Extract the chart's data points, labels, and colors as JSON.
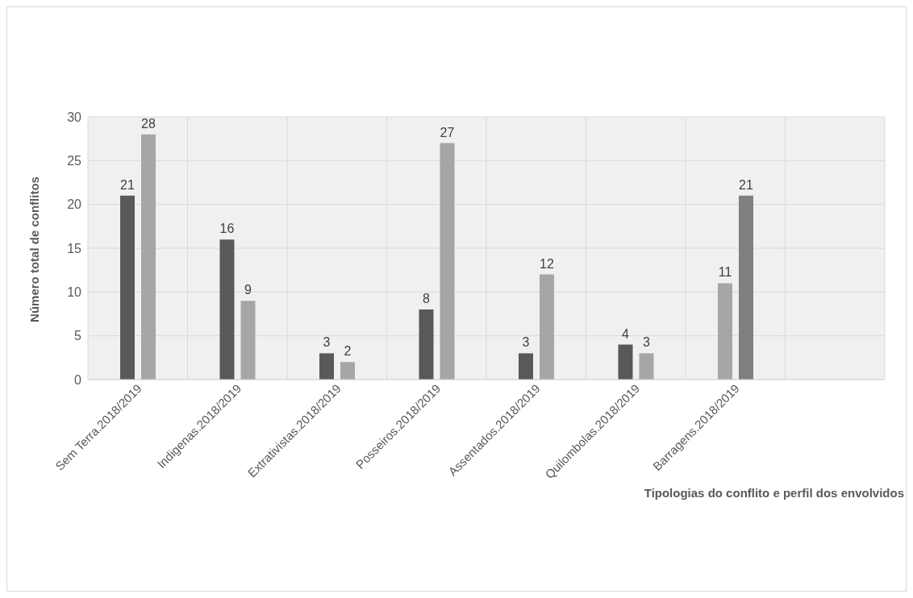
{
  "chart_data": {
    "type": "bar",
    "ylabel": "Número total de conflitos",
    "xlabel": "Tipologias do conflito e perfil dos envolvidos",
    "categories": [
      "Sem Terra.2018/2019",
      "Indigenas.2018/2019",
      "Extrativistas.2018/2019",
      "Posseiros.2018/2019",
      "Assentados.2018/2019",
      "Quilombolas.2018/2019",
      "Barragens.2018/2019",
      null
    ],
    "series": [
      {
        "colors": [
          "#595959",
          "#595959",
          "#595959",
          "#595959",
          "#595959",
          "#595959",
          "#a6a6a6",
          "#595959"
        ],
        "values": [
          21,
          16,
          3,
          8,
          3,
          4,
          11,
          null
        ]
      },
      {
        "colors": [
          "#a6a6a6",
          "#a6a6a6",
          "#a6a6a6",
          "#a6a6a6",
          "#a6a6a6",
          "#a6a6a6",
          "#7f7f7f",
          "#a6a6a6"
        ],
        "values": [
          28,
          9,
          2,
          27,
          12,
          3,
          21,
          null
        ]
      }
    ],
    "ylim": [
      0,
      30
    ],
    "yticks": [
      0,
      5,
      10,
      15,
      20,
      25,
      30
    ],
    "grid": true,
    "data_labels": true,
    "legend": false
  }
}
